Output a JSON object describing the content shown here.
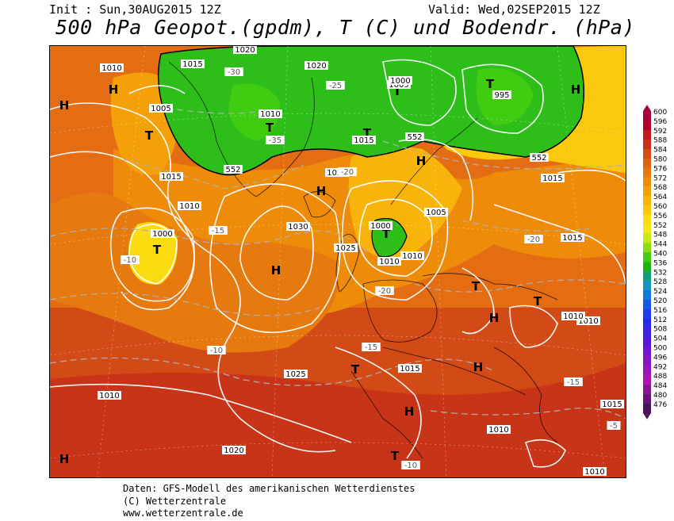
{
  "header": {
    "init": "Init : Sun,30AUG2015 12Z",
    "valid": "Valid: Wed,02SEP2015 12Z",
    "title": "500 hPa Geopot.(gpdm), T (C) und Bodendr. (hPa)"
  },
  "footer": {
    "line1": "Daten: GFS-Modell des amerikanischen Wetterdienstes",
    "line2": "(C) Wetterzentrale",
    "line3": "www.wetterzentrale.de"
  },
  "legend": {
    "levels": [
      "600",
      "596",
      "592",
      "588",
      "584",
      "580",
      "576",
      "572",
      "568",
      "564",
      "560",
      "556",
      "552",
      "548",
      "544",
      "540",
      "536",
      "532",
      "528",
      "524",
      "520",
      "516",
      "512",
      "508",
      "504",
      "500",
      "496",
      "492",
      "488",
      "484",
      "480",
      "476"
    ],
    "colors": [
      "#a8003c",
      "#b4002a",
      "#c21a1a",
      "#cc2e18",
      "#d64a16",
      "#de6012",
      "#e6760e",
      "#ee8c0a",
      "#f4a008",
      "#f8b40a",
      "#fac80c",
      "#fadc10",
      "#f0e814",
      "#c8e814",
      "#8cdc14",
      "#40cc10",
      "#20b414",
      "#10a07c",
      "#1496c8",
      "#1478dc",
      "#145ae6",
      "#1e3cf0",
      "#2a28f0",
      "#4020e6",
      "#5a14dc",
      "#7014d2",
      "#8614c8",
      "#9a14be",
      "#ac14b4",
      "#8a1496",
      "#6a1478",
      "#4a145a"
    ]
  },
  "map": {
    "lows": [
      {
        "label": "T"
      },
      {
        "label": "T"
      },
      {
        "label": "T"
      },
      {
        "label": "T"
      },
      {
        "label": "T"
      },
      {
        "label": "T"
      },
      {
        "label": "T"
      },
      {
        "label": "T"
      },
      {
        "label": "T"
      },
      {
        "label": "T"
      },
      {
        "label": "T"
      }
    ],
    "highs": [
      {
        "label": "H"
      },
      {
        "label": "H"
      },
      {
        "label": "H"
      },
      {
        "label": "H"
      },
      {
        "label": "H"
      },
      {
        "label": "H"
      },
      {
        "label": "H"
      },
      {
        "label": "H"
      },
      {
        "label": "H"
      },
      {
        "label": "H"
      }
    ],
    "isobar_labels": [
      "1010",
      "1015",
      "1020",
      "1025",
      "1030",
      "1005",
      "1000",
      "995",
      "1015",
      "1010",
      "1020",
      "1010",
      "1005",
      "1000",
      "1010",
      "1015",
      "1020",
      "1025",
      "1015",
      "1010",
      "1015",
      "1010",
      "1020",
      "1010",
      "1005",
      "1000",
      "1010",
      "1015",
      "1010",
      "1015",
      "1010"
    ],
    "temp_labels": [
      "-10",
      "-15",
      "-20",
      "-25",
      "-30",
      "-35",
      "-10",
      "-15",
      "-20",
      "-5",
      "-10",
      "-15",
      "-20"
    ],
    "geopot_labels": [
      "552",
      "552",
      "552"
    ]
  }
}
